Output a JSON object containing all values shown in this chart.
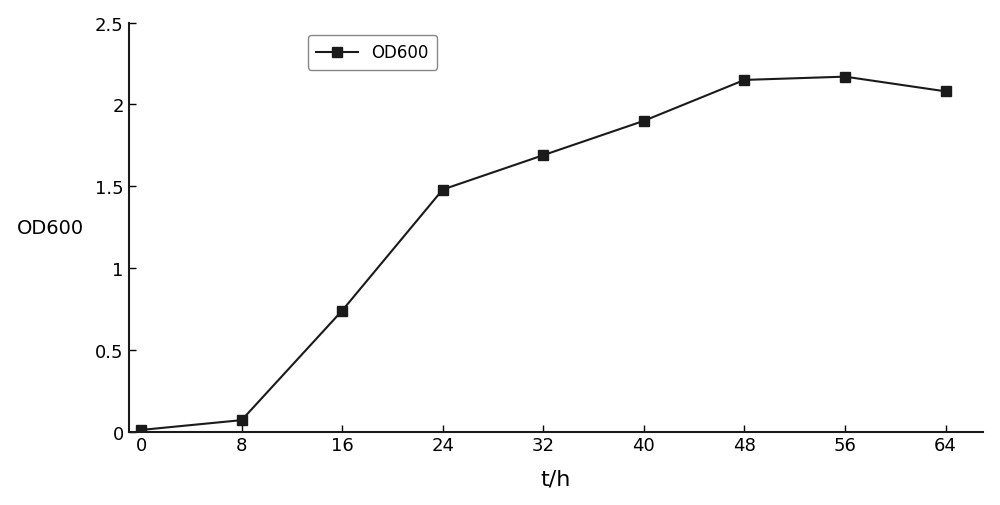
{
  "x": [
    0,
    8,
    16,
    24,
    32,
    40,
    48,
    56,
    64
  ],
  "y": [
    0.01,
    0.07,
    0.74,
    1.48,
    1.69,
    1.9,
    2.15,
    2.17,
    2.08
  ],
  "line_color": "#1a1a1a",
  "marker": "s",
  "marker_color": "#1a1a1a",
  "marker_size": 7,
  "line_width": 1.5,
  "xlabel": "t/h",
  "ylabel": "OD600",
  "legend_label": "OD600",
  "xlim": [
    -1,
    67
  ],
  "ylim": [
    0,
    2.5
  ],
  "xticks": [
    0,
    8,
    16,
    24,
    32,
    40,
    48,
    56,
    64
  ],
  "yticks": [
    0,
    0.5,
    1.0,
    1.5,
    2.0,
    2.5
  ],
  "xlabel_fontsize": 16,
  "ylabel_fontsize": 14,
  "tick_fontsize": 13,
  "legend_fontsize": 12,
  "background_color": "#ffffff",
  "spine_color": "#1a1a1a"
}
